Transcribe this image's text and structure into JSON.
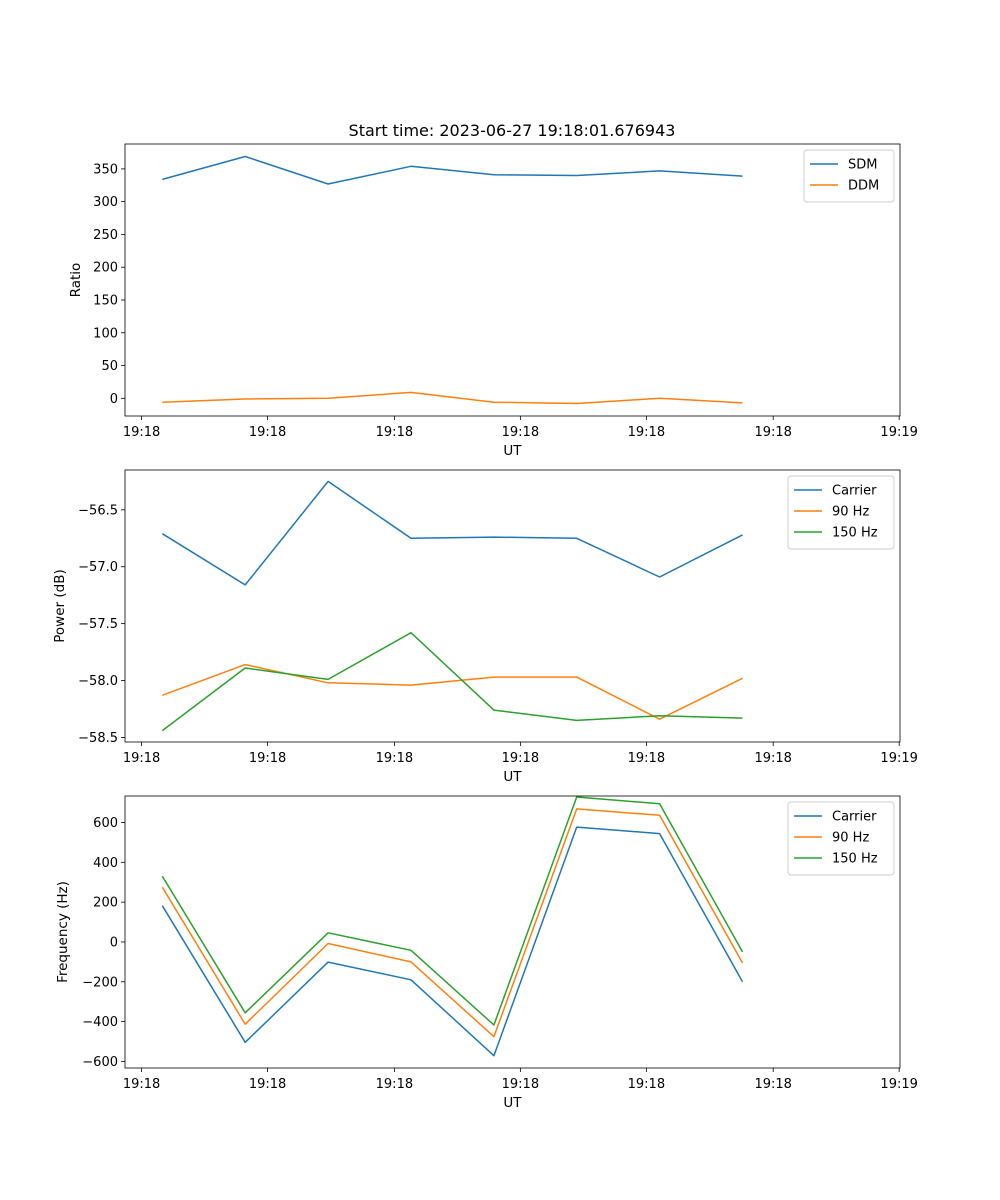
{
  "figure": {
    "title": "Start time: 2023-06-27 19:18:01.676943"
  },
  "chart_data": [
    {
      "type": "line",
      "title": "Start time: 2023-06-27 19:18:01.676943",
      "xlabel": "UT",
      "ylabel": "Ratio",
      "x_tick_labels": [
        "19:18",
        "19:18",
        "19:18",
        "19:18",
        "19:18",
        "19:18",
        "19:19"
      ],
      "y_ticks": [
        0,
        50,
        100,
        150,
        200,
        250,
        300,
        350
      ],
      "ylim": [
        -27,
        388
      ],
      "x": [
        1,
        2,
        3,
        4,
        5,
        6,
        7,
        8
      ],
      "xlim": [
        0.55,
        9.9
      ],
      "x_tick_positions": [
        0.75,
        2.27,
        3.8,
        5.32,
        6.84,
        8.37,
        9.89
      ],
      "legend_position": "upper right",
      "series": [
        {
          "name": "SDM",
          "color": "#1f77b4",
          "values": [
            334,
            369,
            327,
            354,
            341,
            340,
            347,
            339
          ]
        },
        {
          "name": "DDM",
          "color": "#ff7f0e",
          "values": [
            -6,
            -1,
            0,
            9,
            -6,
            -8,
            0,
            -7
          ]
        }
      ]
    },
    {
      "type": "line",
      "xlabel": "UT",
      "ylabel": "Power (dB)",
      "x_tick_labels": [
        "19:18",
        "19:18",
        "19:18",
        "19:18",
        "19:18",
        "19:18",
        "19:19"
      ],
      "y_ticks": [
        -56.5,
        -57.0,
        -57.5,
        -58.0,
        -58.5
      ],
      "y_tick_labels": [
        "−56.5",
        "−57.0",
        "−57.5",
        "−58.0",
        "−58.5"
      ],
      "ylim": [
        -58.54,
        -56.15
      ],
      "x": [
        1,
        2,
        3,
        4,
        5,
        6,
        7,
        8
      ],
      "xlim": [
        0.55,
        9.9
      ],
      "x_tick_positions": [
        0.75,
        2.27,
        3.8,
        5.32,
        6.84,
        8.37,
        9.89
      ],
      "legend_position": "upper right",
      "series": [
        {
          "name": "Carrier",
          "color": "#1f77b4",
          "values": [
            -56.71,
            -57.16,
            -56.25,
            -56.75,
            -56.74,
            -56.75,
            -57.09,
            -56.72
          ]
        },
        {
          "name": "90 Hz",
          "color": "#ff7f0e",
          "values": [
            -58.13,
            -57.86,
            -58.02,
            -58.04,
            -57.97,
            -57.97,
            -58.34,
            -57.98
          ]
        },
        {
          "name": "150 Hz",
          "color": "#2ca02c",
          "values": [
            -58.44,
            -57.89,
            -57.99,
            -57.58,
            -58.26,
            -58.35,
            -58.31,
            -58.33
          ]
        }
      ]
    },
    {
      "type": "line",
      "xlabel": "UT",
      "ylabel": "Frequency (Hz)",
      "x_tick_labels": [
        "19:18",
        "19:18",
        "19:18",
        "19:18",
        "19:18",
        "19:18",
        "19:19"
      ],
      "y_ticks": [
        -600,
        -400,
        -200,
        0,
        200,
        400,
        600
      ],
      "y_tick_labels": [
        "−600",
        "−400",
        "−200",
        "0",
        "200",
        "400",
        "600"
      ],
      "ylim": [
        -633,
        733
      ],
      "x": [
        1,
        2,
        3,
        4,
        5,
        6,
        7,
        8
      ],
      "xlim": [
        0.55,
        9.9
      ],
      "x_tick_positions": [
        0.75,
        2.27,
        3.8,
        5.32,
        6.84,
        8.37,
        9.89
      ],
      "legend_position": "upper right",
      "series": [
        {
          "name": "Carrier",
          "color": "#1f77b4",
          "values": [
            182,
            -504,
            -101,
            -190,
            -571,
            577,
            544,
            -200
          ]
        },
        {
          "name": "90 Hz",
          "color": "#ff7f0e",
          "values": [
            275,
            -413,
            -8,
            -100,
            -476,
            668,
            636,
            -105
          ]
        },
        {
          "name": "150 Hz",
          "color": "#2ca02c",
          "values": [
            330,
            -356,
            46,
            -42,
            -417,
            728,
            694,
            -50
          ]
        }
      ]
    }
  ]
}
